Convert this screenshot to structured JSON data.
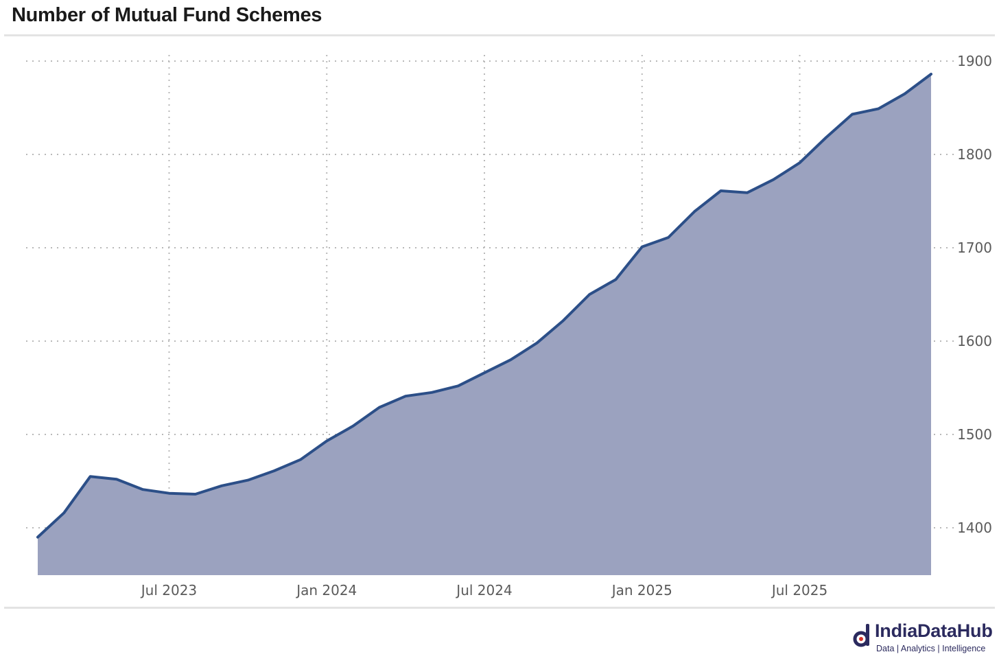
{
  "title": "Number of Mutual Fund Schemes",
  "logo": {
    "name": "IndiaDataHub",
    "tagline": "Data | Analytics | Intelligence",
    "color": "#2b2a5e"
  },
  "chart_data": {
    "type": "area",
    "title": "Number of Mutual Fund Schemes",
    "xlabel": "",
    "ylabel": "",
    "x": [
      "2023-02",
      "2023-03",
      "2023-04",
      "2023-05",
      "2023-06",
      "2023-07",
      "2023-08",
      "2023-09",
      "2023-10",
      "2023-11",
      "2023-12",
      "2024-01",
      "2024-02",
      "2024-03",
      "2024-04",
      "2024-05",
      "2024-06",
      "2024-07",
      "2024-08",
      "2024-09",
      "2024-10",
      "2024-11",
      "2024-12",
      "2025-01",
      "2025-02",
      "2025-03",
      "2025-04",
      "2025-05",
      "2025-06",
      "2025-07",
      "2025-08",
      "2025-09",
      "2025-10",
      "2025-11",
      "2025-12"
    ],
    "series": [
      {
        "values": [
          1390,
          1416,
          1455,
          1452,
          1441,
          1437,
          1436,
          1445,
          1451,
          1461,
          1473,
          1493,
          1509,
          1529,
          1541,
          1545,
          1552,
          1566,
          1580,
          1598,
          1622,
          1650,
          1666,
          1701,
          1711,
          1739,
          1761,
          1759,
          1773,
          1791,
          1818,
          1843,
          1849,
          1865,
          1886
        ]
      }
    ],
    "x_ticks": [
      "Jul 2023",
      "Jan 2024",
      "Jul 2024",
      "Jan 2025",
      "Jul 2025"
    ],
    "y_ticks": [
      1400,
      1500,
      1600,
      1700,
      1800,
      1900
    ],
    "ylim": [
      1350,
      1925
    ],
    "y_axis_side": "right",
    "grid": "dotted",
    "legend": "none",
    "colors": {
      "line": "#2c4f88",
      "fill": "#9ba2bf",
      "grid": "#b8b8b8",
      "tick_text": "#5a5a5a"
    }
  }
}
